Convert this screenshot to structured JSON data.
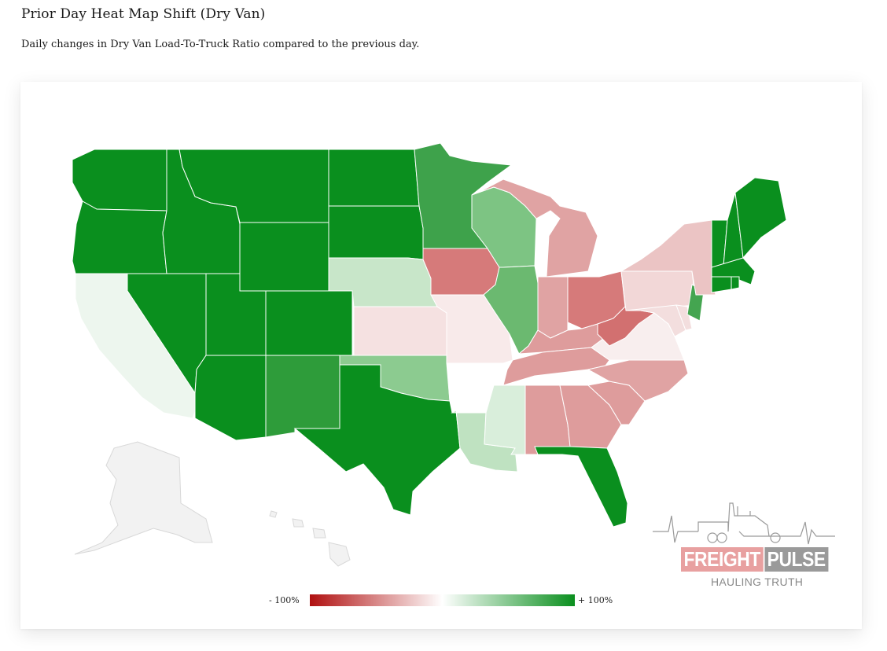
{
  "header": {
    "title": "Prior Day Heat Map Shift (Dry Van)",
    "subtitle": "Daily changes in Dry Van Load-To-Truck Ratio compared to the previous day."
  },
  "legend": {
    "min_label": "- 100%",
    "max_label": "+ 100%",
    "min_color": "#b01010",
    "mid_color": "#ffffff",
    "max_color": "#0a8f1e"
  },
  "brand": {
    "name_part1": "FREIGHT",
    "name_part2": "PULSE",
    "tagline": "HAULING TRUTH"
  },
  "colors": {
    "strong_green": "#0a8f1e",
    "no_data": "#f2f2f2"
  },
  "states": [
    {
      "code": "WA",
      "color": "#0a8f1e"
    },
    {
      "code": "OR",
      "color": "#0a8f1e"
    },
    {
      "code": "ID",
      "color": "#0a8f1e"
    },
    {
      "code": "MT",
      "color": "#0a8f1e"
    },
    {
      "code": "WY",
      "color": "#0a8f1e"
    },
    {
      "code": "ND",
      "color": "#0a8f1e"
    },
    {
      "code": "SD",
      "color": "#0a8f1e"
    },
    {
      "code": "NV",
      "color": "#0a8f1e"
    },
    {
      "code": "UT",
      "color": "#0a8f1e"
    },
    {
      "code": "CO",
      "color": "#0a8f1e"
    },
    {
      "code": "AZ",
      "color": "#0a8f1e"
    },
    {
      "code": "TX",
      "color": "#0a8f1e"
    },
    {
      "code": "FL",
      "color": "#0a8f1e"
    },
    {
      "code": "VT",
      "color": "#0a8f1e"
    },
    {
      "code": "NH",
      "color": "#0a8f1e"
    },
    {
      "code": "ME",
      "color": "#0a8f1e"
    },
    {
      "code": "MA",
      "color": "#0a8f1e"
    },
    {
      "code": "CT",
      "color": "#0a8f1e"
    },
    {
      "code": "RI",
      "color": "#0a8f1e"
    },
    {
      "code": "NM",
      "color": "#2e9c3a"
    },
    {
      "code": "MN",
      "color": "#3ea24b"
    },
    {
      "code": "NJ",
      "color": "#44a550"
    },
    {
      "code": "IL",
      "color": "#6bb970"
    },
    {
      "code": "WI",
      "color": "#7dc483"
    },
    {
      "code": "OK",
      "color": "#8ccb90"
    },
    {
      "code": "NE",
      "color": "#c8e6c9"
    },
    {
      "code": "LA",
      "color": "#bfe2c1"
    },
    {
      "code": "MS",
      "color": "#d9eedb"
    },
    {
      "code": "CA",
      "color": "#edf6ee"
    },
    {
      "code": "AR",
      "color": "#ffffff"
    },
    {
      "code": "MO",
      "color": "#f8eaea"
    },
    {
      "code": "KS",
      "color": "#f5e1e1"
    },
    {
      "code": "VA",
      "color": "#f8eeee"
    },
    {
      "code": "MD",
      "color": "#f3dede"
    },
    {
      "code": "DE",
      "color": "#f3dede"
    },
    {
      "code": "PA",
      "color": "#f2d7d7"
    },
    {
      "code": "NY",
      "color": "#ebc4c4"
    },
    {
      "code": "IN",
      "color": "#e0a3a3"
    },
    {
      "code": "MI",
      "color": "#e0a3a3"
    },
    {
      "code": "KY",
      "color": "#de9c9c"
    },
    {
      "code": "TN",
      "color": "#de9c9c"
    },
    {
      "code": "NC",
      "color": "#e0a3a3"
    },
    {
      "code": "SC",
      "color": "#de9c9c"
    },
    {
      "code": "GA",
      "color": "#de9c9c"
    },
    {
      "code": "AL",
      "color": "#de9c9c"
    },
    {
      "code": "IA",
      "color": "#d67a7a"
    },
    {
      "code": "OH",
      "color": "#d67a7a"
    },
    {
      "code": "WV",
      "color": "#d27070"
    },
    {
      "code": "AK",
      "color": "#f2f2f2"
    },
    {
      "code": "HI",
      "color": "#f2f2f2"
    }
  ]
}
